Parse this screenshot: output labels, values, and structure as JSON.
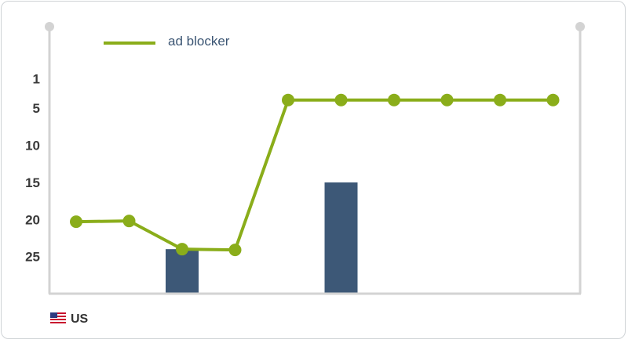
{
  "chart_data": {
    "type": "line",
    "x": [
      1,
      2,
      3,
      4,
      5,
      6,
      7,
      8,
      9,
      10
    ],
    "series": [
      {
        "name": "ad blocker",
        "type": "line",
        "color": "#8aad1a",
        "values": [
          20.3,
          20.2,
          24.0,
          24.1,
          3.9,
          3.9,
          3.9,
          3.9,
          3.9,
          3.9
        ]
      },
      {
        "type": "bar",
        "color": "#3d5877",
        "values": [
          null,
          null,
          24,
          null,
          null,
          15,
          null,
          null,
          null,
          null
        ]
      }
    ],
    "y_ticks": [
      1,
      5,
      10,
      15,
      20,
      25
    ],
    "y_reversed": true,
    "ylim": [
      -6,
      30
    ],
    "grid": false,
    "legend_position": "top-left",
    "title": "",
    "xlabel": "",
    "ylabel": ""
  },
  "legend": {
    "label": "ad blocker"
  },
  "footer": {
    "country": "US",
    "flag_icon": "us-flag-icon"
  },
  "colors": {
    "line": "#8aad1a",
    "bar": "#3d5877",
    "axis": "#d3d3d3",
    "text": "#3a3a3a"
  }
}
